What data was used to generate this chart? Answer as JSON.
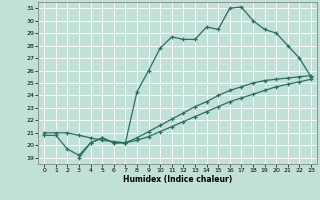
{
  "bg_color": "#c0e0d8",
  "line_color": "#2a7060",
  "xlabel": "Humidex (Indice chaleur)",
  "xlim": [
    -0.5,
    23.5
  ],
  "ylim": [
    18.5,
    31.5
  ],
  "xticks": [
    0,
    1,
    2,
    3,
    4,
    5,
    6,
    7,
    8,
    9,
    10,
    11,
    12,
    13,
    14,
    15,
    16,
    17,
    18,
    19,
    20,
    21,
    22,
    23
  ],
  "yticks": [
    19,
    20,
    21,
    22,
    23,
    24,
    25,
    26,
    27,
    28,
    29,
    30,
    31
  ],
  "curve_top_x": [
    0,
    1,
    2,
    3,
    4,
    5,
    6,
    7,
    8,
    9,
    10,
    11,
    12,
    13,
    14,
    15,
    16,
    17,
    18,
    19,
    20,
    21,
    22,
    23
  ],
  "curve_top_y": [
    20.8,
    20.8,
    19.7,
    19.2,
    20.2,
    20.6,
    20.2,
    20.2,
    24.3,
    26.0,
    27.8,
    28.7,
    28.5,
    28.5,
    29.5,
    29.3,
    31.0,
    31.1,
    30.0,
    29.3,
    29.0,
    28.0,
    27.0,
    25.5
  ],
  "curve_mid_x": [
    0,
    1,
    2,
    3,
    4,
    5,
    6,
    7,
    8,
    9,
    10,
    11,
    12,
    13,
    14,
    15,
    16,
    17,
    18,
    19,
    20,
    21,
    22,
    23
  ],
  "curve_mid_y": [
    21.0,
    21.0,
    21.0,
    20.8,
    20.6,
    20.4,
    20.3,
    20.2,
    20.4,
    20.7,
    21.1,
    21.5,
    21.9,
    22.3,
    22.7,
    23.1,
    23.5,
    23.8,
    24.1,
    24.4,
    24.7,
    24.9,
    25.1,
    25.3
  ],
  "curve_bot_x": [
    3,
    4,
    5,
    6,
    7,
    8,
    9,
    10,
    11,
    12,
    13,
    14,
    15,
    16,
    17,
    18,
    19,
    20,
    21,
    22,
    23
  ],
  "curve_bot_y": [
    19.0,
    20.2,
    20.6,
    20.2,
    20.2,
    20.6,
    21.1,
    21.6,
    22.1,
    22.6,
    23.1,
    23.5,
    24.0,
    24.4,
    24.7,
    25.0,
    25.2,
    25.3,
    25.4,
    25.5,
    25.6
  ]
}
